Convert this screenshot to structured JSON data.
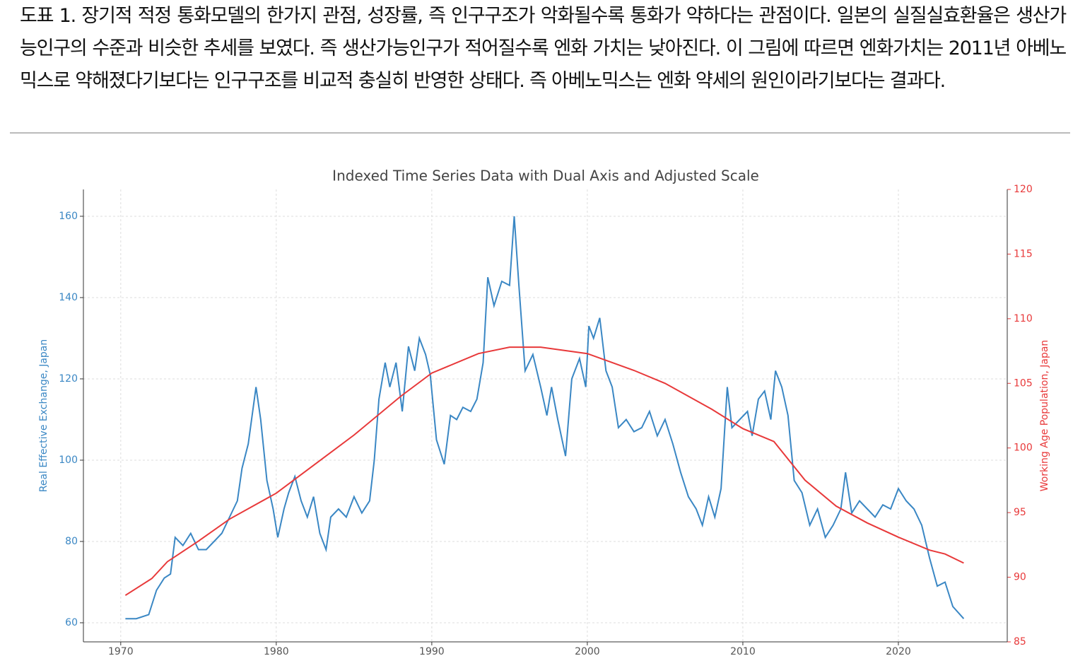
{
  "caption": "도표 1. 장기적 적정 통화모델의 한가지 관점, 성장률, 즉 인구구조가 악화될수록 통화가 약하다는 관점이다. 일본의 실질실효환율은 생산가능인구의 수준과 비슷한 추세를 보였다. 즉 생산가능인구가 적어질수록 엔화 가치는 낮아진다. 이 그림에 따르면 엔화가치는 2011년 아베노믹스로 약해졌다기보다는 인구구조를 비교적 충실히 반영한 상태다. 즉 아베노믹스는 엔화 약세의 원인이라기보다는 결과다.",
  "chart_data": {
    "type": "line",
    "title": "Indexed Time Series Data with Dual Axis and Adjusted Scale",
    "y_label": "Real Effective Exchange, Japan",
    "y2_label": "Working Age Population, Japan",
    "xlim": [
      1967.6,
      2027
    ],
    "xticks": [
      1970,
      1980,
      1990,
      2000,
      2010,
      2020
    ],
    "ylim": [
      55.3,
      166.6
    ],
    "yticks": [
      60,
      80,
      100,
      120,
      140,
      160
    ],
    "y2lim": [
      85,
      120
    ],
    "y2ticks": [
      85,
      90,
      95,
      100,
      105,
      110,
      115,
      120
    ],
    "grid": true,
    "series": [
      {
        "name": "Real Effective Exchange, Japan",
        "color": "#3a87c4",
        "x": [
          1970.3,
          1971,
          1971.8,
          1972.3,
          1972.8,
          1973.2,
          1973.5,
          1974,
          1974.5,
          1975,
          1975.5,
          1976,
          1976.5,
          1977,
          1977.5,
          1977.8,
          1978.2,
          1978.7,
          1979,
          1979.4,
          1979.8,
          1980.1,
          1980.5,
          1980.8,
          1981.2,
          1981.6,
          1982,
          1982.4,
          1982.8,
          1983.2,
          1983.5,
          1984,
          1984.5,
          1985,
          1985.5,
          1986,
          1986.3,
          1986.6,
          1987,
          1987.3,
          1987.7,
          1988.1,
          1988.5,
          1988.9,
          1989.2,
          1989.6,
          1989.9,
          1990.3,
          1990.8,
          1991.2,
          1991.6,
          1992,
          1992.5,
          1992.9,
          1993.3,
          1993.6,
          1994,
          1994.5,
          1995,
          1995.3,
          1995.6,
          1996,
          1996.5,
          1997,
          1997.4,
          1997.7,
          1998.1,
          1998.6,
          1999,
          1999.5,
          1999.9,
          2000.1,
          2000.4,
          2000.8,
          2001.2,
          2001.6,
          2002,
          2002.5,
          2003,
          2003.5,
          2004,
          2004.5,
          2005,
          2005.5,
          2006,
          2006.5,
          2007,
          2007.4,
          2007.8,
          2008.2,
          2008.6,
          2009,
          2009.3,
          2009.8,
          2010.3,
          2010.6,
          2011,
          2011.4,
          2011.8,
          2012.1,
          2012.5,
          2012.9,
          2013.3,
          2013.8,
          2014.3,
          2014.8,
          2015.3,
          2015.8,
          2016.3,
          2016.6,
          2017,
          2017.5,
          2018,
          2018.5,
          2019,
          2019.5,
          2020,
          2020.5,
          2021,
          2021.5,
          2022,
          2022.5,
          2023,
          2023.5,
          2024.2
        ],
        "values": [
          61,
          61,
          62,
          68,
          71,
          72,
          81,
          79,
          82,
          78,
          78,
          80,
          82,
          86,
          90,
          98,
          104,
          118,
          110,
          95,
          88,
          81,
          88,
          92,
          96,
          90,
          86,
          91,
          82,
          78,
          86,
          88,
          86,
          91,
          87,
          90,
          100,
          115,
          124,
          118,
          124,
          112,
          128,
          122,
          130,
          126,
          121,
          105,
          99,
          111,
          110,
          113,
          112,
          115,
          124,
          145,
          138,
          144,
          143,
          160,
          143,
          122,
          126,
          118,
          111,
          118,
          110,
          101,
          120,
          125,
          118,
          133,
          130,
          135,
          122,
          118,
          108,
          110,
          107,
          108,
          112,
          106,
          110,
          104,
          97,
          91,
          88,
          84,
          91,
          86,
          93,
          118,
          108,
          110,
          112,
          106,
          115,
          117,
          110,
          122,
          118,
          111,
          95,
          92,
          84,
          88,
          81,
          84,
          88,
          97,
          87,
          90,
          88,
          86,
          89,
          88,
          93,
          90,
          88,
          84,
          76,
          69,
          70,
          64,
          61
        ]
      },
      {
        "name": "Working Age Population, Japan",
        "color": "#e8393a",
        "axis": "y2",
        "x": [
          1970.3,
          1972,
          1973,
          1975,
          1977,
          1980,
          1982,
          1985,
          1988,
          1990,
          1993,
          1995,
          1997,
          2000,
          2003,
          2005,
          2008,
          2010,
          2012,
          2014,
          2016,
          2018,
          2020,
          2022,
          2023,
          2024.2
        ],
        "values": [
          88.6,
          89.9,
          91.2,
          92.8,
          94.5,
          96.5,
          98.3,
          101,
          104,
          105.8,
          107.3,
          107.8,
          107.8,
          107.3,
          106,
          105,
          103,
          101.5,
          100.5,
          97.5,
          95.5,
          94.2,
          93.1,
          92.1,
          91.8,
          91.1
        ]
      }
    ]
  }
}
